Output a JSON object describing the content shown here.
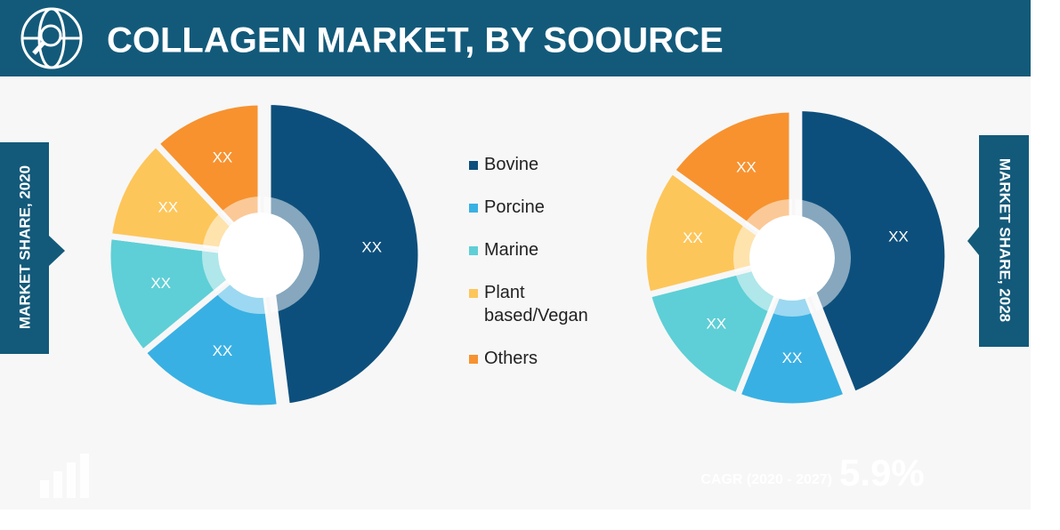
{
  "title": "COLLAGEN MARKET, BY SOOURCE",
  "chart_data": [
    {
      "type": "pie",
      "title": "MARKET SHARE, 2020",
      "categories": [
        "Bovine",
        "Porcine",
        "Marine",
        "Plant based/Vegan",
        "Others"
      ],
      "values": [
        48,
        16,
        13,
        11,
        12
      ],
      "value_labels": [
        "XX",
        "XX",
        "XX",
        "XX",
        "XX"
      ],
      "colors": [
        "#0d4f7c",
        "#39b0e3",
        "#5ecfd6",
        "#fdc65a",
        "#f7922f"
      ]
    },
    {
      "type": "pie",
      "title": "MARKET SHARE, 2028",
      "categories": [
        "Bovine",
        "Porcine",
        "Marine",
        "Plant based/Vegan",
        "Others"
      ],
      "values": [
        44,
        12,
        15,
        14,
        15
      ],
      "value_labels": [
        "XX",
        "XX",
        "XX",
        "XX",
        "XX"
      ],
      "colors": [
        "#0d4f7c",
        "#39b0e3",
        "#5ecfd6",
        "#fdc65a",
        "#f7922f"
      ]
    }
  ],
  "cagr": {
    "label": "CAGR (2020 - 2027)",
    "value": "5.9%"
  }
}
